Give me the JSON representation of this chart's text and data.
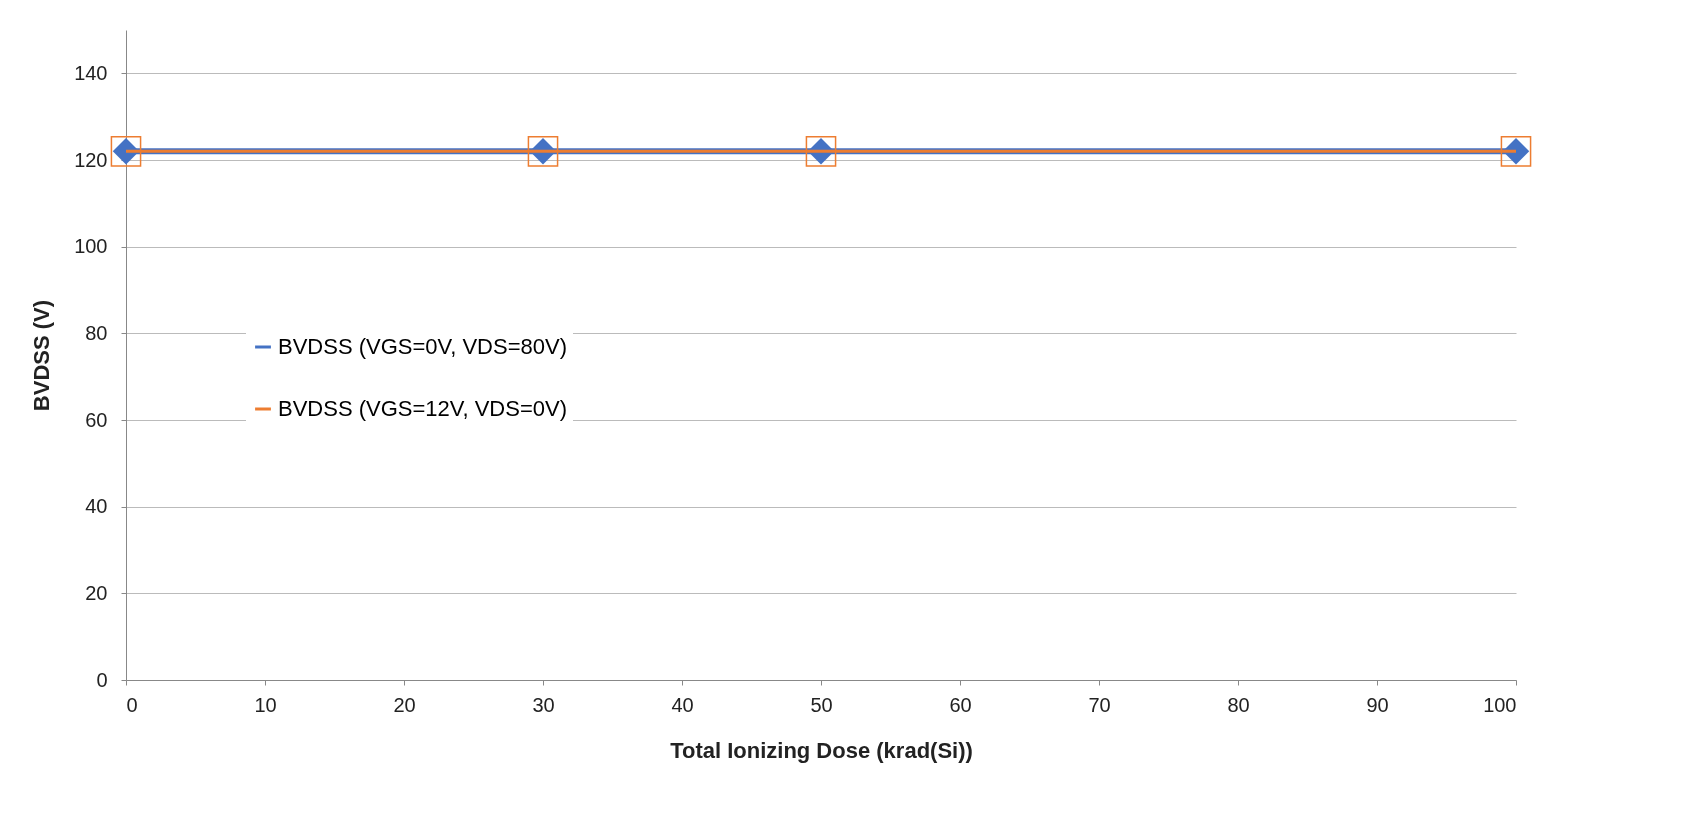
{
  "chart_data": {
    "type": "line",
    "xlabel": "Total Ionizing Dose (krad(Si))",
    "ylabel": "BVDSS (V)",
    "x": [
      0,
      30,
      50,
      100
    ],
    "series": [
      {
        "name": "BVDSS (VGS=0V, VDS=80V)",
        "color": "#4472c4",
        "marker": "diamond",
        "values": [
          122,
          122,
          122,
          122
        ]
      },
      {
        "name": "BVDSS (VGS=12V, VDS=0V)",
        "color": "#ed7d31",
        "marker": "square",
        "values": [
          122,
          122,
          122,
          122
        ]
      }
    ],
    "xlim": [
      0,
      100
    ],
    "xticks": [
      0,
      10,
      20,
      30,
      40,
      50,
      60,
      70,
      80,
      90,
      100
    ],
    "ylim": [
      0,
      150
    ],
    "yticks": [
      0,
      20,
      40,
      60,
      80,
      100,
      120,
      140
    ],
    "grid": "y",
    "legend": "left",
    "line_style": "solid"
  }
}
